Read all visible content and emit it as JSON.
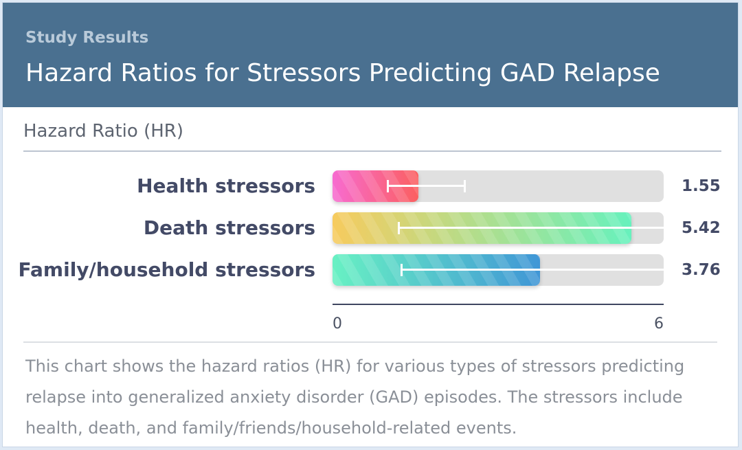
{
  "header": {
    "eyebrow": "Study Results",
    "title": "Hazard Ratios for Stressors Predicting GAD Relapse"
  },
  "chart_data": {
    "type": "bar",
    "orientation": "horizontal",
    "axis_title": "Hazard Ratio (HR)",
    "xlim": [
      0,
      6
    ],
    "ticks": [
      "0",
      "6"
    ],
    "categories": [
      "Health stressors",
      "Death stressors",
      "Family/household stressors"
    ],
    "values": [
      1.55,
      5.42,
      3.76
    ],
    "value_labels": [
      "1.55",
      "5.42",
      "3.76"
    ],
    "ci": [
      [
        1.0,
        2.4
      ],
      [
        1.2,
        6.0
      ],
      [
        1.25,
        6.0
      ]
    ],
    "gradients": [
      [
        "#f76bd0",
        "#fb6060"
      ],
      [
        "#f7cb5e",
        "#67f1bd"
      ],
      [
        "#68f1c3",
        "#4096d6"
      ]
    ],
    "grid": false,
    "legend": "none"
  },
  "description": "This chart shows the hazard ratios (HR) for various types of stressors predicting relapse into generalized anxiety disorder (GAD) episodes. The stressors include health, death, and family/friends/household-related events."
}
